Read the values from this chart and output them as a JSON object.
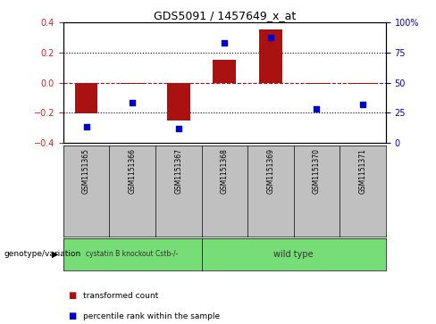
{
  "title": "GDS5091 / 1457649_x_at",
  "samples": [
    "GSM1151365",
    "GSM1151366",
    "GSM1151367",
    "GSM1151368",
    "GSM1151369",
    "GSM1151370",
    "GSM1151371"
  ],
  "transformed_count": [
    -0.205,
    -0.01,
    -0.255,
    0.15,
    0.355,
    -0.01,
    -0.01
  ],
  "percentile_rank": [
    13,
    33,
    12,
    83,
    88,
    28,
    32
  ],
  "bar_color": "#AA1111",
  "scatter_color": "#0000CC",
  "ylim_left": [
    -0.4,
    0.4
  ],
  "ylim_right": [
    0,
    100
  ],
  "yticks_left": [
    -0.4,
    -0.2,
    0.0,
    0.2,
    0.4
  ],
  "yticks_right": [
    0,
    25,
    50,
    75,
    100
  ],
  "dotted_lines": [
    -0.2,
    0.2
  ],
  "left_tick_color": "#CC2222",
  "right_tick_color": "#0000CC",
  "legend_items": [
    {
      "label": "transformed count",
      "color": "#AA1111"
    },
    {
      "label": "percentile rank within the sample",
      "color": "#0000CC"
    }
  ],
  "genotype_label": "genotype/variation",
  "group1_label": "cystatin B knockout Cstb-/-",
  "group2_label": "wild type",
  "group1_count": 3,
  "group2_count": 4,
  "group_bg_color": "#77DD77",
  "sample_box_color": "#C0C0C0"
}
